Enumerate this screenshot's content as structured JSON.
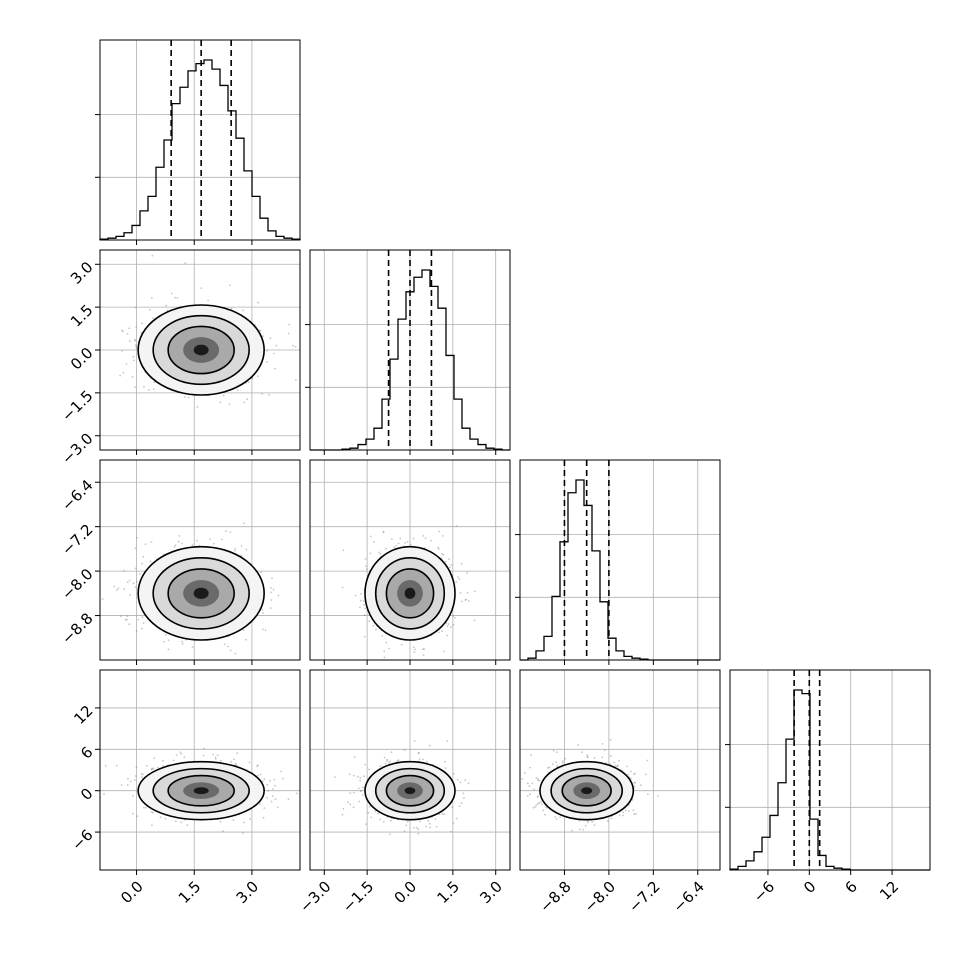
{
  "chart_data": {
    "type": "corner",
    "parameters": [
      {
        "range": [
          -0.95,
          4.25
        ],
        "ticks": [
          0.0,
          1.5,
          3.0
        ],
        "tick_labels": [
          "0.0",
          "1.5",
          "3.0"
        ],
        "mean": 1.68,
        "sd": 0.78,
        "quantiles": [
          0.9,
          1.68,
          2.46
        ],
        "hist": [
          0.5,
          1,
          2,
          4,
          8,
          16,
          24,
          40,
          55,
          75,
          84,
          93,
          97,
          99,
          94,
          85,
          71,
          56,
          38,
          24,
          12,
          5,
          2,
          1,
          0.5
        ]
      },
      {
        "range": [
          -3.5,
          3.5
        ],
        "ticks": [
          -3.0,
          -1.5,
          0.0,
          1.5,
          3.0
        ],
        "tick_labels": [
          "−3.0",
          "−1.5",
          "0.0",
          "1.5",
          "3.0"
        ],
        "mean": 0.0,
        "sd": 0.75,
        "quantiles": [
          -0.75,
          0.0,
          0.75
        ],
        "hist": [
          0,
          0,
          0,
          0,
          0.5,
          1,
          3,
          6,
          12,
          28,
          50,
          72,
          87,
          95,
          99,
          90,
          78,
          52,
          28,
          12,
          6,
          3,
          1,
          0.5,
          0
        ]
      },
      {
        "range": [
          -9.6,
          -6.0
        ],
        "ticks": [
          -8.8,
          -8.0,
          -7.2,
          -6.4
        ],
        "tick_labels": [
          "−8.8",
          "−8.0",
          "−7.2",
          "−6.4"
        ],
        "mean": -8.4,
        "sd": 0.4,
        "quantiles": [
          -8.8,
          -8.4,
          -8.0
        ],
        "hist": [
          0,
          1,
          5,
          13,
          35,
          65,
          92,
          99,
          85,
          60,
          32,
          12,
          5,
          2,
          1,
          0.5,
          0,
          0,
          0,
          0,
          0,
          0,
          0,
          0,
          0
        ]
      },
      {
        "range": [
          -11.5,
          17.5
        ],
        "ticks": [
          -6,
          0,
          6,
          12
        ],
        "tick_labels": [
          "−6",
          "0",
          "6",
          "12"
        ],
        "mean": 0.0,
        "sd": 2.0,
        "quantiles": [
          -2.2,
          0.0,
          1.5
        ],
        "hist": [
          0.5,
          2,
          5,
          10,
          18,
          30,
          48,
          72,
          99,
          97,
          28,
          8,
          2,
          1,
          0.5,
          0,
          0,
          0,
          0,
          0,
          0,
          0,
          0,
          0,
          0
        ]
      }
    ],
    "pairs": [
      {
        "row": 1,
        "col": 0
      },
      {
        "row": 2,
        "col": 0
      },
      {
        "row": 2,
        "col": 1
      },
      {
        "row": 3,
        "col": 0
      },
      {
        "row": 3,
        "col": 1
      },
      {
        "row": 3,
        "col": 2
      }
    ],
    "grid": true,
    "quantile_line_style": "dashed",
    "contour_color": "#000000",
    "scatter_color": "#808080"
  }
}
